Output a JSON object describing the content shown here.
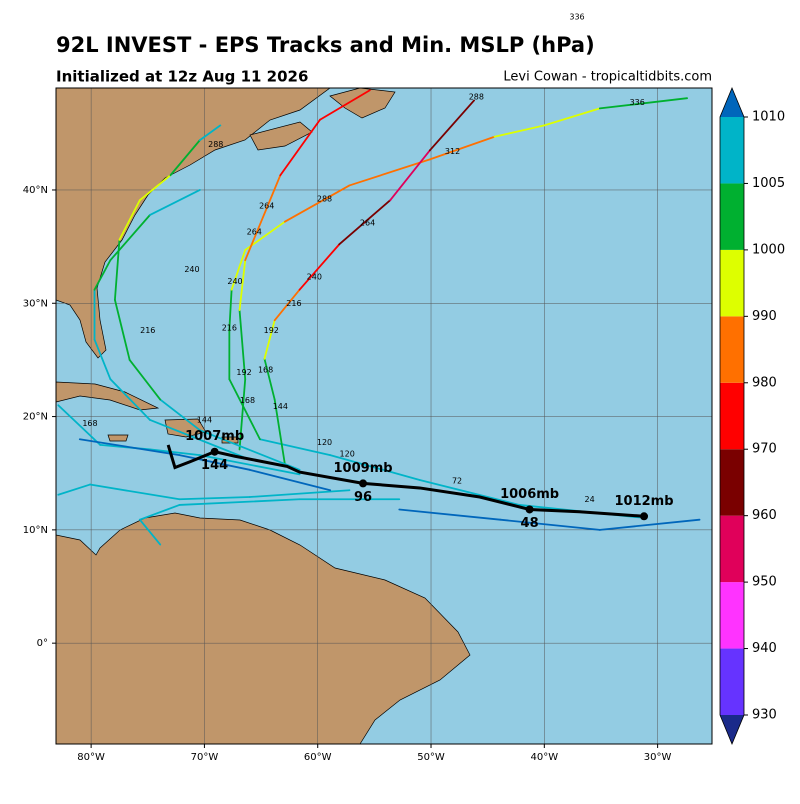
{
  "header": {
    "title": "92L INVEST - EPS Tracks and Min. MSLP (hPa)",
    "subtitle": "Initialized at 12z Aug 11 2026",
    "credit": "Levi Cowan - tropicaltidbits.com",
    "stray_label": "336"
  },
  "map": {
    "lonlim": [
      -83.1,
      -25.2
    ],
    "latlim": [
      -8.9,
      49.0
    ],
    "lonticks": [
      {
        "value": -80,
        "label": "80°W"
      },
      {
        "value": -70,
        "label": "70°W"
      },
      {
        "value": -60,
        "label": "60°W"
      },
      {
        "value": -50,
        "label": "50°W"
      },
      {
        "value": -40,
        "label": "40°W"
      },
      {
        "value": -30,
        "label": "30°W"
      }
    ],
    "latticks": [
      {
        "value": 40,
        "label": "40°N"
      },
      {
        "value": 30,
        "label": "30°N"
      },
      {
        "value": 20,
        "label": "20°N"
      },
      {
        "value": 10,
        "label": "10°N"
      },
      {
        "value": 0,
        "label": "0°"
      }
    ],
    "grid": true
  },
  "colorbar": {
    "levels": [
      930,
      940,
      950,
      960,
      970,
      980,
      990,
      1000,
      1005,
      1010
    ],
    "colors": [
      "#1a2a8a",
      "#6633ff",
      "#ff33ff",
      "#e0005a",
      "#7a0000",
      "#ff0000",
      "#ff7000",
      "#ddff00",
      "#00b030",
      "#00b4c8",
      "#0066bb"
    ]
  },
  "tracks": [
    {
      "lon": [
        -31.6,
        -42.2,
        -51.0,
        -58.9,
        -65.1,
        -67.8,
        -67.8,
        -67.6,
        -66.4,
        -62.9,
        -57.2,
        -50.1,
        -44.4,
        -40.0,
        -35.1,
        -27.4
      ],
      "lat": [
        11.1,
        12.2,
        14.4,
        16.6,
        18.0,
        23.3,
        27.7,
        31.2,
        34.7,
        37.2,
        40.4,
        42.7,
        44.7,
        45.7,
        47.2,
        48.1
      ],
      "mslp": [
        1008,
        1007,
        1006,
        1006,
        1004,
        1002,
        1000,
        995,
        990,
        985,
        985,
        985,
        992,
        995,
        1002,
        1004
      ]
    },
    {
      "lon": [
        -62.9,
        -63.8,
        -64.7,
        -63.8,
        -61.6,
        -58.1,
        -53.6,
        -50.1,
        -46.2
      ],
      "lat": [
        15.8,
        21.5,
        25.1,
        28.5,
        31.2,
        35.2,
        39.1,
        43.5,
        47.9
      ],
      "mslp": [
        1004,
        1000,
        995,
        985,
        975,
        960,
        955,
        965,
        975
      ]
    },
    {
      "lon": [
        -66.9,
        -66.4,
        -66.9,
        -66.4,
        -63.3,
        -59.8,
        -55.4
      ],
      "lat": [
        17.1,
        23.3,
        29.4,
        33.8,
        41.3,
        46.2,
        48.8
      ],
      "mslp": [
        1004,
        1000,
        995,
        988,
        975,
        972,
        975
      ]
    },
    {
      "lon": [
        -61.6,
        -70.4,
        -73.9,
        -76.6,
        -77.9,
        -77.5,
        -75.7,
        -73.0,
        -70.4,
        -68.6
      ],
      "lat": [
        15.3,
        18.8,
        21.5,
        25.0,
        30.3,
        35.6,
        39.1,
        41.3,
        44.4,
        45.7
      ],
      "mslp": [
        1006,
        1005,
        1004,
        1003,
        1000,
        992,
        995,
        1000,
        1005,
        1006
      ]
    },
    {
      "lon": [
        -66.0,
        -74.8,
        -78.3,
        -79.7,
        -79.7,
        -78.3,
        -74.8,
        -70.4
      ],
      "lat": [
        16.2,
        19.7,
        23.3,
        26.8,
        31.2,
        33.8,
        37.8,
        40.0
      ],
      "mslp": [
        1007,
        1006,
        1006,
        1005,
        1004,
        1003,
        1006,
        1007
      ]
    },
    {
      "lon": [
        -61.6,
        -70.4,
        -74.8,
        -79.2,
        -82.9
      ],
      "lat": [
        14.9,
        16.6,
        17.1,
        17.5,
        21.0
      ],
      "mslp": [
        1008,
        1008,
        1007,
        1007,
        1007
      ]
    },
    {
      "lon": [
        -57.2,
        -66.0,
        -72.2,
        -80.1,
        -82.9
      ],
      "lat": [
        13.5,
        12.9,
        12.7,
        14.0,
        13.1
      ],
      "mslp": [
        1008,
        1008,
        1008,
        1005,
        1004
      ]
    },
    {
      "lon": [
        -52.8,
        -61.6,
        -72.2,
        -75.7,
        -73.9
      ],
      "lat": [
        12.7,
        12.7,
        12.2,
        10.9,
        8.7
      ],
      "mslp": [
        1008,
        1008,
        1008,
        1008,
        1008
      ]
    },
    {
      "lon": [
        -26.3,
        -35.1,
        -43.9,
        -52.8
      ],
      "lat": [
        10.9,
        10.0,
        10.9,
        11.8
      ],
      "mslp": [
        1011,
        1011,
        1011,
        1011
      ]
    },
    {
      "lon": [
        -58.9,
        -66.0,
        -72.2,
        -81.0
      ],
      "lat": [
        13.5,
        15.3,
        16.6,
        18.0
      ],
      "mslp": [
        1011,
        1011,
        1011,
        1011
      ]
    }
  ],
  "mean_track": {
    "lon": [
      -31.2,
      -36.9,
      -41.3,
      -45.7,
      -51.0,
      -56.0,
      -61.6,
      -62.7,
      -67.3,
      -69.1,
      -71.3,
      -72.6,
      -73.2
    ],
    "lat": [
      11.2,
      11.6,
      11.8,
      12.9,
      13.7,
      14.1,
      15.1,
      15.6,
      16.5,
      16.9,
      16.0,
      15.5,
      17.5
    ],
    "point_labels": [
      {
        "pressure": "1012mb",
        "lon": -31.2,
        "lat": 11.2
      },
      {
        "pressure": "1006mb",
        "hour": "48",
        "lon": -41.3,
        "lat": 11.8
      },
      {
        "pressure": "1009mb",
        "hour": "96",
        "lon": -56.0,
        "lat": 14.1
      },
      {
        "pressure": "1007mb",
        "hour": "144",
        "lon": -69.1,
        "lat": 16.9
      }
    ]
  },
  "ensemble_labels": [
    {
      "text": "336",
      "lon": -31.8,
      "lat": 47.7
    },
    {
      "text": "312",
      "lon": -48.1,
      "lat": 43.4
    },
    {
      "text": "288",
      "lon": -59.4,
      "lat": 39.2
    },
    {
      "text": "264",
      "lon": -64.5,
      "lat": 38.6
    },
    {
      "text": "264",
      "lon": -65.6,
      "lat": 36.3
    },
    {
      "text": "264",
      "lon": -55.6,
      "lat": 37.1
    },
    {
      "text": "240",
      "lon": -71.1,
      "lat": 33.0
    },
    {
      "text": "240",
      "lon": -67.3,
      "lat": 31.9
    },
    {
      "text": "240",
      "lon": -60.3,
      "lat": 32.3
    },
    {
      "text": "216",
      "lon": -62.1,
      "lat": 30.0
    },
    {
      "text": "216",
      "lon": -67.8,
      "lat": 27.8
    },
    {
      "text": "216",
      "lon": -75.0,
      "lat": 27.6
    },
    {
      "text": "192",
      "lon": -64.1,
      "lat": 27.6
    },
    {
      "text": "192",
      "lon": -66.5,
      "lat": 23.9
    },
    {
      "text": "168",
      "lon": -64.6,
      "lat": 24.1
    },
    {
      "text": "168",
      "lon": -66.2,
      "lat": 21.4
    },
    {
      "text": "144",
      "lon": -63.3,
      "lat": 20.9
    },
    {
      "text": "120",
      "lon": -59.4,
      "lat": 17.7
    },
    {
      "text": "120",
      "lon": -57.4,
      "lat": 16.7
    },
    {
      "text": "144",
      "lon": -70.0,
      "lat": 19.7
    },
    {
      "text": "168",
      "lon": -80.1,
      "lat": 19.4
    },
    {
      "text": "72",
      "lon": -47.7,
      "lat": 14.3
    },
    {
      "text": "24",
      "lon": -36.0,
      "lat": 12.7
    },
    {
      "text": "288",
      "lon": -69.0,
      "lat": 44.0
    },
    {
      "text": "288",
      "lon": -46.0,
      "lat": 48.2
    }
  ]
}
